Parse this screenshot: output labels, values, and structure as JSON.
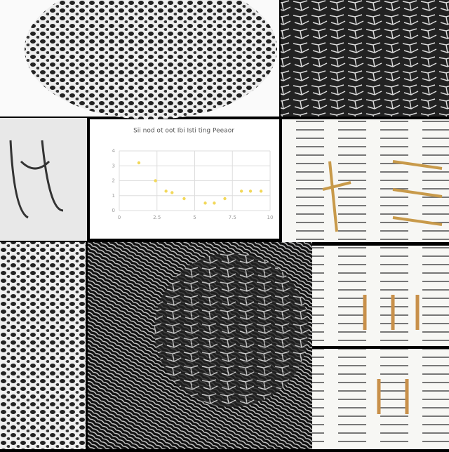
{
  "chart_data": {
    "type": "scatter",
    "title": "Sii nod ot oot Ibi Isti ting Peeaor",
    "x": [
      1.3,
      2.4,
      3.1,
      3.5,
      4.3,
      5.7,
      6.3,
      7.0,
      8.1,
      8.7,
      9.4
    ],
    "values": [
      3.2,
      2.0,
      1.3,
      1.2,
      0.8,
      0.5,
      0.5,
      0.8,
      1.3,
      1.3,
      1.3
    ],
    "color": "#f2d85a",
    "xlim": [
      0,
      10
    ],
    "ylim": [
      0,
      4
    ],
    "xticks": [
      0,
      2.5,
      5,
      7.5,
      10
    ],
    "yticks": [
      0,
      1,
      2,
      3,
      4
    ],
    "grid": true
  }
}
